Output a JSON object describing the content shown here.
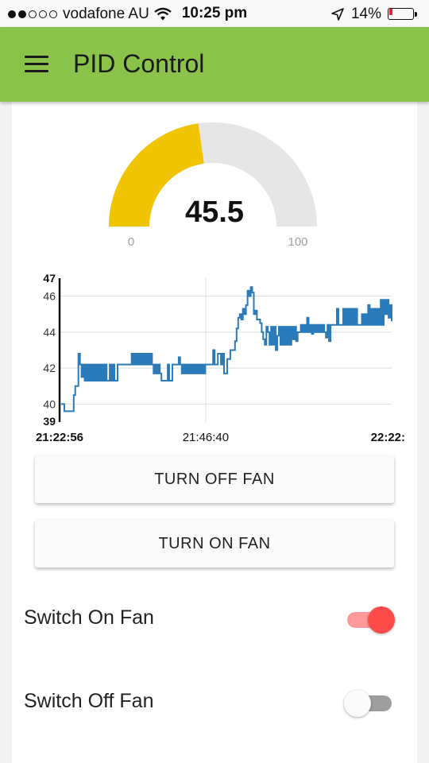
{
  "status_bar": {
    "carrier": "vodafone AU",
    "time": "10:25 pm",
    "battery": "14%",
    "battery_level": 0.14,
    "battery_color": "#e0262e",
    "signal_bars": 2,
    "icons": [
      "signal-dots-icon",
      "wifi-icon",
      "location-arrow-icon",
      "battery-icon"
    ]
  },
  "app_bar": {
    "title": "PID Control",
    "color": "#8bc34a",
    "menu_icon": "hamburger-menu-icon"
  },
  "gauge": {
    "value": "45.5",
    "numeric_value": 45.5,
    "min": "0",
    "max": "100",
    "fill_color": "#f0c400",
    "track_color": "#e6e6e6"
  },
  "chart_data": {
    "type": "line",
    "title": "",
    "xlabel": "",
    "ylabel": "",
    "x_ticks": [
      "21:22:56",
      "21:46:40",
      "22:22:"
    ],
    "y_ticks": [
      40,
      42,
      44,
      46
    ],
    "y_min_label": "39",
    "y_max_label": "47",
    "ylim": [
      39,
      47
    ],
    "grid": true,
    "series_color": "#2b7bba",
    "series": [
      {
        "values": [
          40,
          40,
          39.6,
          39.6,
          39.6,
          39.6,
          39.6,
          39.6,
          40.5,
          41,
          41,
          42.8,
          42.2,
          41.5,
          42.2,
          41.3,
          42.2,
          41.3,
          42.2,
          41.3,
          42.2,
          41.3,
          42.2,
          41.3,
          42.2,
          41.3,
          42.2,
          41.3,
          42.2,
          41.3,
          41.3,
          42.2,
          41.3,
          42.2,
          41.3,
          41.3,
          42.2,
          42.2,
          42.2,
          42.2,
          42.2,
          42.2,
          42.2,
          42.2,
          42.2,
          42.8,
          42.2,
          42.8,
          42.2,
          42.8,
          42.2,
          42.8,
          42.2,
          42.8,
          42.2,
          42.8,
          42.2,
          42.8,
          42.2,
          41.7,
          42.2,
          41.7,
          42.2,
          41.7,
          41.3,
          41.3,
          41.3,
          41.3,
          42.2,
          41.3,
          41.3,
          42.2,
          42.2,
          42.2,
          42.2,
          42.6,
          42.2,
          41.7,
          42.2,
          41.7,
          42.2,
          41.7,
          42.2,
          41.7,
          42.2,
          41.7,
          42.2,
          41.7,
          42.2,
          41.7,
          42.2,
          41.7,
          42.2,
          42.2,
          42.2,
          42.2,
          42.2,
          43,
          42.2,
          42.2,
          42.8,
          42.8,
          42.2,
          42.8,
          41.7,
          41.7,
          42.5,
          42.5,
          43,
          43,
          43,
          43.5,
          44.2,
          44.8,
          45,
          44.7,
          45.3,
          45,
          45.5,
          46.3,
          46,
          46.5,
          46.2,
          45,
          45.2,
          44.7,
          44.7,
          44.5,
          44,
          43.6,
          43.3,
          44.3,
          44,
          43.3,
          44.3,
          43.3,
          44.3,
          43,
          43.8,
          44.3,
          43.3,
          44.3,
          43.3,
          44.3,
          43.3,
          44.3,
          43.3,
          44.3,
          43.6,
          44.3,
          43.5,
          44,
          44,
          44.4,
          44,
          44.4,
          44,
          44.8,
          44,
          44.4,
          43.9,
          44.4,
          44,
          44.4,
          44,
          44.4,
          44,
          44.4,
          44,
          43.7,
          44.4,
          43.5,
          44.4,
          44.4,
          44.4,
          44.4,
          45.3,
          44.4,
          44.4,
          44.4,
          45.3,
          44.4,
          45.3,
          44.4,
          45.3,
          44.4,
          45.3,
          44.4,
          45.3,
          44.4,
          44.4,
          44.4,
          45,
          44.4,
          45,
          44.4,
          45.5,
          44.4,
          45.3,
          44.4,
          45.3,
          44.4,
          45.3,
          44.4,
          45.8,
          44.4,
          45.8,
          45,
          45.8,
          44.8,
          45.5,
          44.6
        ]
      }
    ]
  },
  "buttons": {
    "turn_off": "TURN OFF FAN",
    "turn_on": "TURN ON FAN"
  },
  "switches": [
    {
      "label": "Switch On Fan",
      "state": "on",
      "color": "#ff4a4a"
    },
    {
      "label": "Switch Off Fan",
      "state": "off",
      "color": "#9e9e9e"
    }
  ]
}
